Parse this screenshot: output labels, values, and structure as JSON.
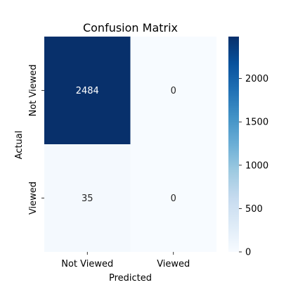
{
  "chart_data": {
    "type": "heatmap",
    "title": "Confusion Matrix",
    "xlabel": "Predicted",
    "ylabel": "Actual",
    "x_categories": [
      "Not Viewed",
      "Viewed"
    ],
    "y_categories": [
      "Not Viewed",
      "Viewed"
    ],
    "values": [
      [
        2484,
        0
      ],
      [
        35,
        0
      ]
    ],
    "colormap": "Blues",
    "vmin": 0,
    "vmax": 2484,
    "colorbar_ticks": [
      0,
      500,
      1000,
      1500,
      2000
    ],
    "colors": {
      "low": "#f7fbff",
      "high": "#08306b",
      "annot_dark": "#262626",
      "annot_light": "#ffffff"
    }
  }
}
